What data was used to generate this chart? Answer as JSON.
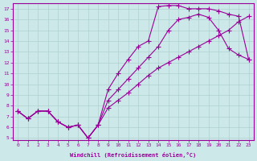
{
  "xlabel": "Windchill (Refroidissement éolien,°C)",
  "bg_color": "#cce8e8",
  "line_color": "#990099",
  "grid_color": "#aacccc",
  "xlim": [
    -0.5,
    23.5
  ],
  "ylim": [
    4.8,
    17.5
  ],
  "xticks": [
    0,
    1,
    2,
    3,
    4,
    5,
    6,
    7,
    8,
    9,
    10,
    11,
    12,
    13,
    14,
    15,
    16,
    17,
    18,
    19,
    20,
    21,
    22,
    23
  ],
  "yticks": [
    5,
    6,
    7,
    8,
    9,
    10,
    11,
    12,
    13,
    14,
    15,
    16,
    17
  ],
  "line1_x": [
    0,
    1,
    2,
    3,
    4,
    5,
    6,
    7,
    8,
    9,
    10,
    11,
    12,
    13,
    14,
    15,
    16,
    17,
    18,
    19,
    20,
    21,
    22,
    23
  ],
  "line1_y": [
    7.5,
    6.8,
    7.5,
    7.5,
    6.5,
    6.0,
    6.2,
    5.0,
    6.2,
    9.5,
    11.0,
    12.3,
    13.5,
    14.0,
    17.2,
    17.3,
    17.3,
    17.0,
    17.0,
    17.0,
    16.8,
    16.5,
    16.3,
    12.3
  ],
  "line2_x": [
    0,
    1,
    2,
    3,
    4,
    5,
    6,
    7,
    8,
    9,
    10,
    11,
    12,
    13,
    14,
    15,
    16,
    17,
    18,
    19,
    20,
    21,
    22,
    23
  ],
  "line2_y": [
    7.5,
    6.8,
    7.5,
    7.5,
    6.5,
    6.0,
    6.2,
    5.0,
    6.2,
    8.5,
    9.5,
    10.5,
    11.5,
    12.5,
    13.5,
    15.0,
    16.0,
    16.2,
    16.5,
    16.2,
    15.0,
    13.3,
    12.7,
    12.3
  ],
  "line3_x": [
    0,
    1,
    2,
    3,
    4,
    5,
    6,
    7,
    8,
    9,
    10,
    11,
    12,
    13,
    14,
    15,
    16,
    17,
    18,
    19,
    20,
    21,
    22,
    23
  ],
  "line3_y": [
    7.5,
    6.8,
    7.5,
    7.5,
    6.5,
    6.0,
    6.2,
    5.0,
    6.2,
    7.8,
    8.5,
    9.2,
    10.0,
    10.8,
    11.5,
    12.0,
    12.5,
    13.0,
    13.5,
    14.0,
    14.5,
    15.0,
    15.8,
    16.3
  ]
}
